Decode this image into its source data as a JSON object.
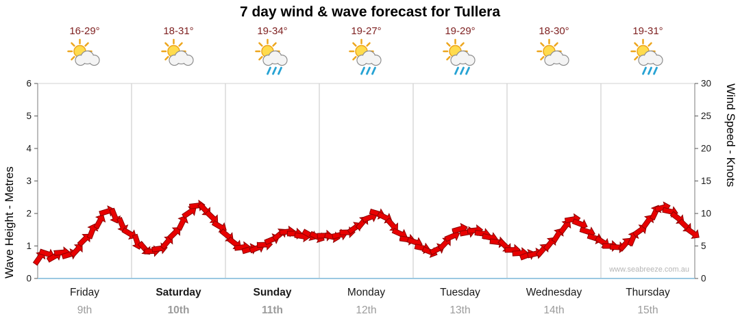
{
  "chart_data": {
    "type": "scatter",
    "title": "7 day wind & wave forecast for Tullera",
    "watermark": "www.seabreeze.com.au",
    "ylabel_left": "Wave Height - Metres",
    "ylabel_right": "Wind Speed - Knots",
    "ylim_left": [
      0,
      6
    ],
    "ylim_right": [
      0,
      30
    ],
    "yticks_left": [
      0,
      1,
      2,
      3,
      4,
      5,
      6
    ],
    "yticks_right": [
      0,
      5,
      10,
      15,
      20,
      25,
      30
    ],
    "xlim_days": [
      0,
      7
    ],
    "grid": "vertical-day-boundaries",
    "legend": "none",
    "axis_note": "left wave axis and right wind axis share the plot; 1 metre aligns with 5 knots",
    "days": [
      {
        "name": "Friday",
        "date": "9th",
        "temp": "16-29°",
        "icon": "partly-cloudy",
        "weekend": false
      },
      {
        "name": "Saturday",
        "date": "10th",
        "temp": "18-31°",
        "icon": "partly-cloudy",
        "weekend": true
      },
      {
        "name": "Sunday",
        "date": "11th",
        "temp": "19-34°",
        "icon": "showers",
        "weekend": true
      },
      {
        "name": "Monday",
        "date": "12th",
        "temp": "19-27°",
        "icon": "showers",
        "weekend": false
      },
      {
        "name": "Tuesday",
        "date": "13th",
        "temp": "19-29°",
        "icon": "showers",
        "weekend": false
      },
      {
        "name": "Wednesday",
        "date": "14th",
        "temp": "18-30°",
        "icon": "partly-cloudy",
        "weekend": false
      },
      {
        "name": "Thursday",
        "date": "15th",
        "temp": "19-31°",
        "icon": "showers",
        "weekend": false
      }
    ],
    "series": [
      {
        "name": "Wind speed & direction",
        "marker": "wind-arrow",
        "color": "#e80000",
        "units": "knots",
        "points": [
          [
            0.02,
            3.2
          ],
          [
            0.1,
            3.8
          ],
          [
            0.18,
            3.4
          ],
          [
            0.26,
            4.0
          ],
          [
            0.34,
            3.7
          ],
          [
            0.42,
            4.4
          ],
          [
            0.5,
            6.0
          ],
          [
            0.58,
            7.3
          ],
          [
            0.66,
            8.8
          ],
          [
            0.74,
            10.3
          ],
          [
            0.82,
            9.6
          ],
          [
            0.9,
            8.2
          ],
          [
            0.98,
            6.9
          ],
          [
            1.06,
            5.6
          ],
          [
            1.14,
            4.6
          ],
          [
            1.22,
            4.2
          ],
          [
            1.3,
            4.6
          ],
          [
            1.38,
            5.6
          ],
          [
            1.46,
            7.0
          ],
          [
            1.54,
            8.6
          ],
          [
            1.62,
            10.2
          ],
          [
            1.7,
            11.2
          ],
          [
            1.78,
            10.6
          ],
          [
            1.86,
            9.4
          ],
          [
            1.94,
            8.0
          ],
          [
            2.02,
            6.6
          ],
          [
            2.1,
            5.4
          ],
          [
            2.18,
            4.8
          ],
          [
            2.26,
            4.5
          ],
          [
            2.34,
            4.7
          ],
          [
            2.42,
            5.2
          ],
          [
            2.5,
            6.0
          ],
          [
            2.58,
            6.8
          ],
          [
            2.66,
            7.2
          ],
          [
            2.74,
            6.9
          ],
          [
            2.82,
            6.5
          ],
          [
            2.9,
            6.7
          ],
          [
            2.98,
            6.4
          ],
          [
            3.06,
            6.6
          ],
          [
            3.14,
            6.4
          ],
          [
            3.22,
            6.7
          ],
          [
            3.3,
            7.1
          ],
          [
            3.38,
            7.8
          ],
          [
            3.46,
            8.6
          ],
          [
            3.54,
            9.4
          ],
          [
            3.62,
            10.0
          ],
          [
            3.7,
            9.4
          ],
          [
            3.78,
            8.2
          ],
          [
            3.86,
            6.9
          ],
          [
            3.94,
            6.0
          ],
          [
            4.02,
            5.6
          ],
          [
            4.1,
            4.7
          ],
          [
            4.18,
            4.1
          ],
          [
            4.26,
            4.5
          ],
          [
            4.34,
            5.4
          ],
          [
            4.42,
            6.5
          ],
          [
            4.5,
            7.6
          ],
          [
            4.58,
            7.1
          ],
          [
            4.66,
            7.4
          ],
          [
            4.74,
            6.9
          ],
          [
            4.82,
            6.3
          ],
          [
            4.9,
            5.6
          ],
          [
            4.98,
            5.0
          ],
          [
            5.06,
            4.4
          ],
          [
            5.14,
            3.9
          ],
          [
            5.22,
            3.6
          ],
          [
            5.3,
            3.8
          ],
          [
            5.38,
            4.4
          ],
          [
            5.46,
            5.4
          ],
          [
            5.54,
            6.7
          ],
          [
            5.62,
            8.0
          ],
          [
            5.7,
            9.1
          ],
          [
            5.78,
            8.4
          ],
          [
            5.86,
            7.2
          ],
          [
            5.94,
            6.2
          ],
          [
            6.02,
            5.6
          ],
          [
            6.1,
            5.0
          ],
          [
            6.18,
            4.8
          ],
          [
            6.26,
            5.3
          ],
          [
            6.34,
            6.2
          ],
          [
            6.42,
            7.4
          ],
          [
            6.5,
            8.8
          ],
          [
            6.58,
            10.2
          ],
          [
            6.66,
            10.9
          ],
          [
            6.74,
            10.3
          ],
          [
            6.82,
            9.3
          ],
          [
            6.9,
            8.1
          ],
          [
            6.98,
            7.0
          ]
        ]
      }
    ]
  }
}
